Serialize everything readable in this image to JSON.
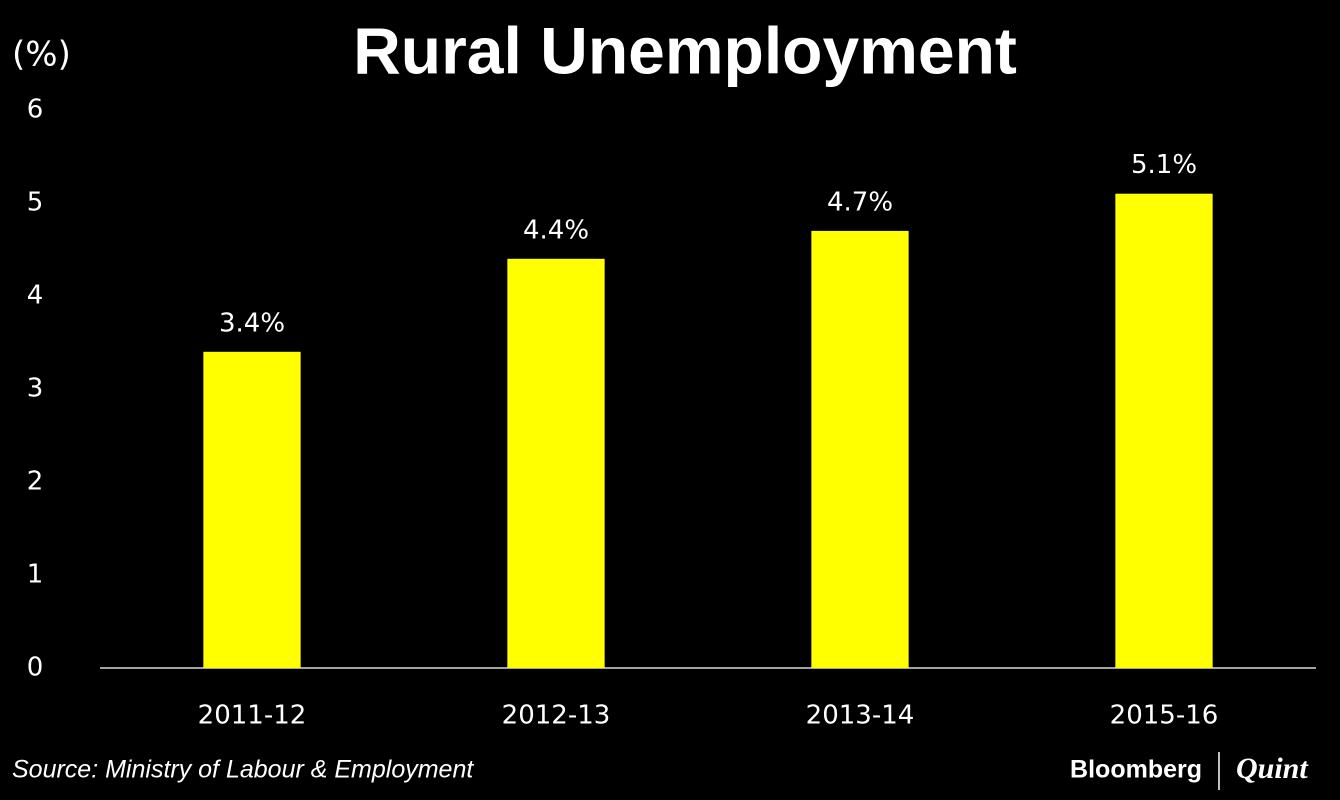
{
  "chart_data": {
    "type": "bar",
    "title": "Rural Unemployment",
    "y_label": "(%)",
    "categories": [
      "2011-12",
      "2012-13",
      "2013-14",
      "2015-16"
    ],
    "values": [
      3.4,
      4.4,
      4.7,
      5.1
    ],
    "value_labels": [
      "3.4%",
      "4.4%",
      "4.7%",
      "5.1%"
    ],
    "color": "#ffff00",
    "ylim": [
      0,
      6
    ],
    "yticks": [
      0,
      1,
      2,
      3,
      4,
      5,
      6
    ],
    "grid": false,
    "source": "Source: Ministry of Labour & Employment",
    "logo": [
      "Bloomberg",
      "Quint"
    ]
  }
}
